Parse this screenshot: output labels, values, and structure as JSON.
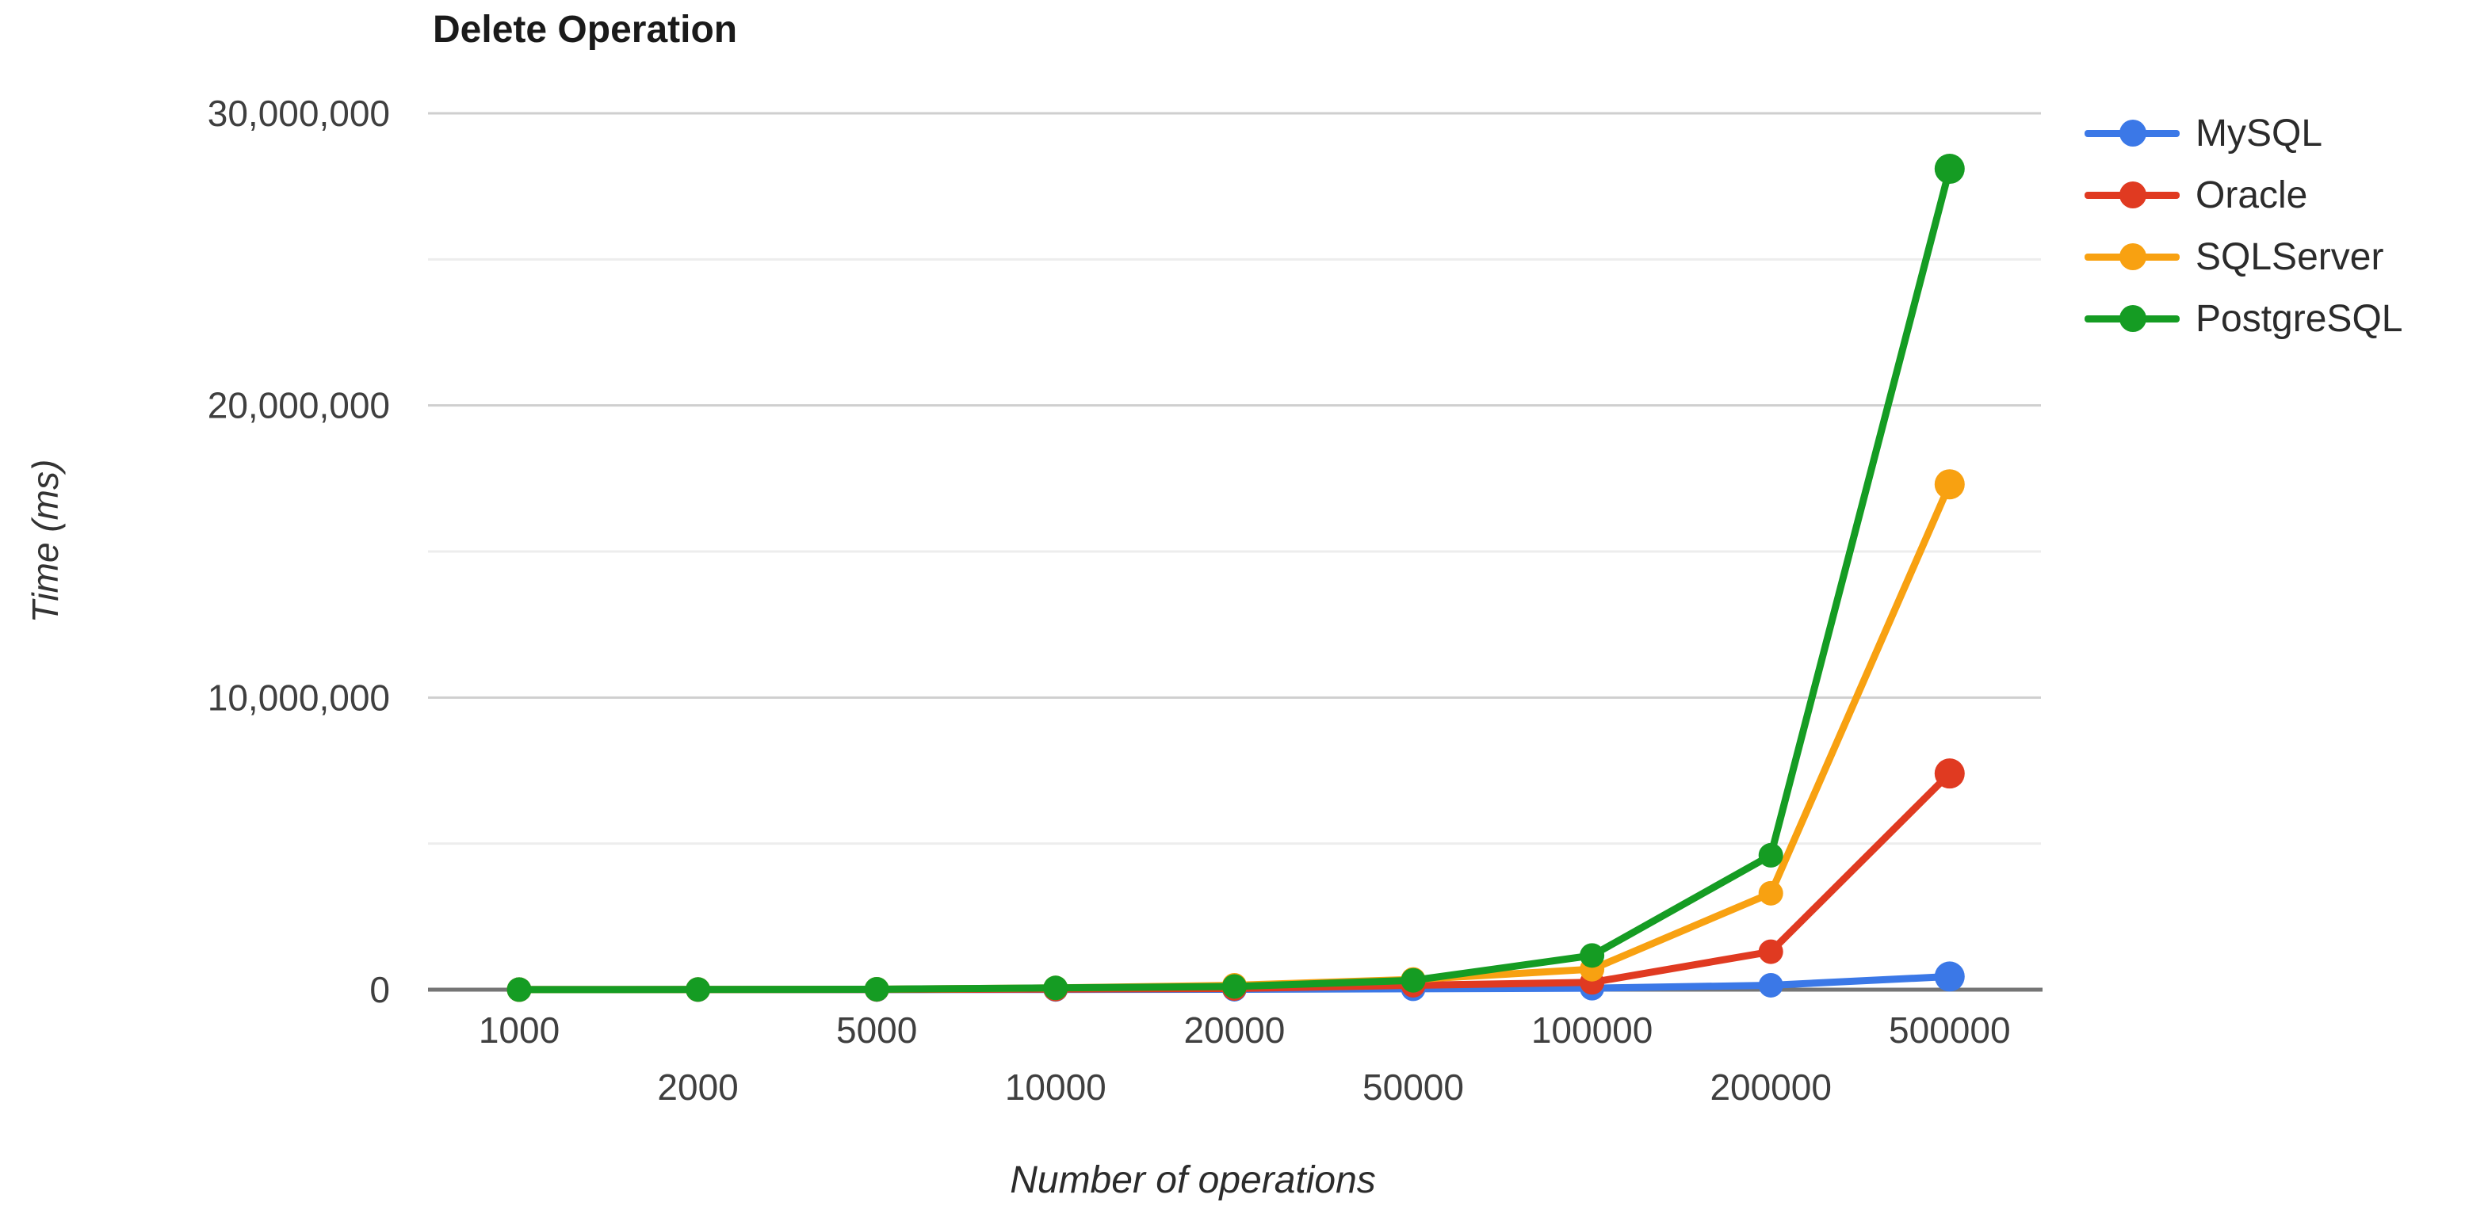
{
  "chart_data": {
    "type": "line",
    "title": "Delete Operation",
    "xlabel": "Number of operations",
    "ylabel": "Time (ms)",
    "categories": [
      "1000",
      "2000",
      "5000",
      "10000",
      "20000",
      "50000",
      "100000",
      "200000",
      "500000"
    ],
    "ylim": [
      0,
      30000000
    ],
    "grid": true,
    "legend_position": "right",
    "y_ticks": [
      {
        "value": 0,
        "label": "0"
      },
      {
        "value": 10000000,
        "label": "10,000,000"
      },
      {
        "value": 20000000,
        "label": "20,000,000"
      },
      {
        "value": 30000000,
        "label": "30,000,000"
      }
    ],
    "minor_y_ticks": [
      5000000,
      15000000,
      25000000
    ],
    "series": [
      {
        "name": "MySQL",
        "color": "#3b78e7",
        "values": [
          1000,
          2000,
          4000,
          8000,
          15000,
          30000,
          50000,
          150000,
          450000
        ]
      },
      {
        "name": "Oracle",
        "color": "#e03a21",
        "values": [
          2000,
          4000,
          8000,
          20000,
          40000,
          150000,
          250000,
          1300000,
          7400000
        ]
      },
      {
        "name": "SQLServer",
        "color": "#f8a111",
        "values": [
          3000,
          6000,
          15000,
          60000,
          150000,
          350000,
          700000,
          3300000,
          17300000
        ]
      },
      {
        "name": "PostgreSQL",
        "color": "#159c23",
        "values": [
          3000,
          6000,
          15000,
          60000,
          110000,
          320000,
          1170000,
          4600000,
          28100000
        ]
      }
    ],
    "styles": {
      "axis_line_color": "#757575",
      "major_grid_color": "#cfcfcf",
      "minor_grid_color": "#ededed",
      "tick_label_color": "#3f3f3f"
    }
  }
}
